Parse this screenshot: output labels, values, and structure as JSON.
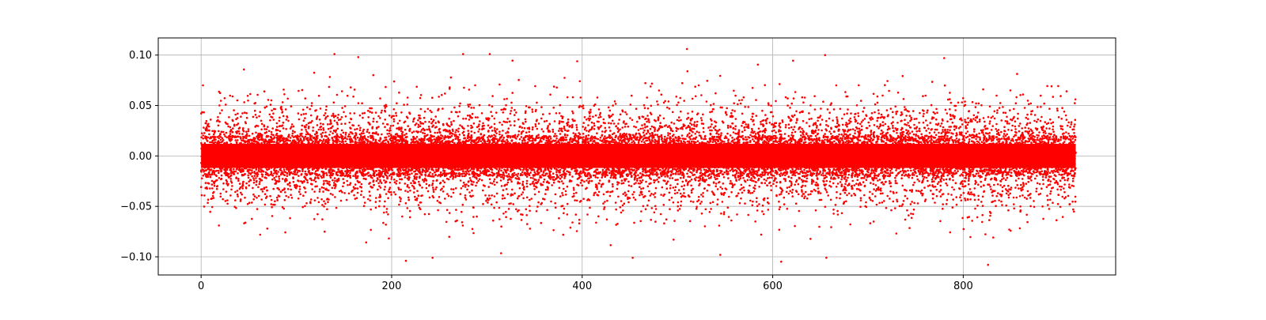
{
  "chart_data": {
    "type": "scatter",
    "title": "",
    "xlabel": "",
    "ylabel": "",
    "grid": true,
    "legend": "none",
    "marker_color": "#ff0000",
    "xlim": [
      -45,
      960
    ],
    "ylim": [
      -0.118,
      0.117
    ],
    "x_ticks": [
      0,
      200,
      400,
      600,
      800
    ],
    "x_tick_labels": [
      "0",
      "200",
      "400",
      "600",
      "800"
    ],
    "y_ticks": [
      -0.1,
      -0.05,
      0.0,
      0.05,
      0.1
    ],
    "y_tick_labels": [
      "−0.10",
      "−0.05",
      "0.00",
      "0.05",
      "0.10"
    ],
    "x_range": [
      0,
      918
    ],
    "series": [
      {
        "distribution": "noise around zero",
        "x_range": [
          0,
          918
        ],
        "mean": 0.0,
        "std": 0.025,
        "y_min": -0.108,
        "y_max": 0.106,
        "outliers": [
          {
            "x": 140,
            "y": 0.101
          },
          {
            "x": 165,
            "y": 0.098
          },
          {
            "x": 275,
            "y": 0.101
          },
          {
            "x": 303,
            "y": 0.101
          },
          {
            "x": 510,
            "y": 0.106
          },
          {
            "x": 655,
            "y": 0.1
          },
          {
            "x": 780,
            "y": 0.097
          },
          {
            "x": 215,
            "y": -0.104
          },
          {
            "x": 243,
            "y": -0.101
          },
          {
            "x": 453,
            "y": -0.101
          },
          {
            "x": 545,
            "y": -0.098
          },
          {
            "x": 826,
            "y": -0.108
          }
        ]
      }
    ]
  }
}
